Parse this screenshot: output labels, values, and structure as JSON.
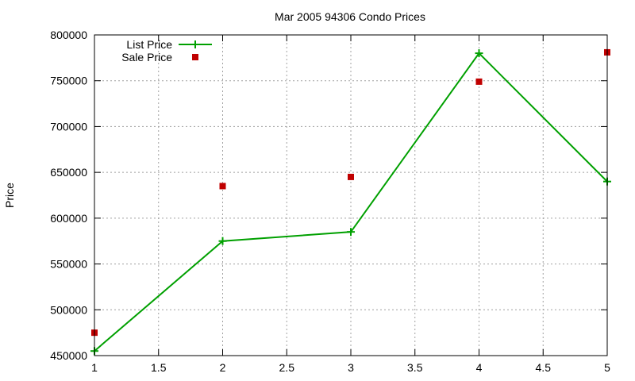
{
  "chart_data": {
    "type": "line",
    "title": "Mar 2005 94306 Condo Prices",
    "xlabel": "",
    "ylabel": "Price",
    "xlim": [
      1,
      5
    ],
    "ylim": [
      450000,
      800000
    ],
    "x_ticks": [
      "1",
      "1.5",
      "2",
      "2.5",
      "3",
      "3.5",
      "4",
      "4.5",
      "5"
    ],
    "y_ticks": [
      "450000",
      "500000",
      "550000",
      "600000",
      "650000",
      "700000",
      "750000",
      "800000"
    ],
    "grid": true,
    "legend_position": "top-left",
    "series": [
      {
        "name": "List Price",
        "style": "linespoints",
        "marker": "plus",
        "color": "#00a000",
        "x": [
          1,
          2,
          3,
          4,
          5
        ],
        "y": [
          455000,
          575000,
          585000,
          780000,
          640000
        ]
      },
      {
        "name": "Sale Price",
        "style": "points",
        "marker": "square",
        "color": "#c00000",
        "x": [
          1,
          2,
          3,
          4,
          5
        ],
        "y": [
          475000,
          635000,
          645000,
          749000,
          781000
        ]
      }
    ]
  },
  "colors": {
    "grid": "#a0a0a0",
    "axis": "#000000"
  }
}
